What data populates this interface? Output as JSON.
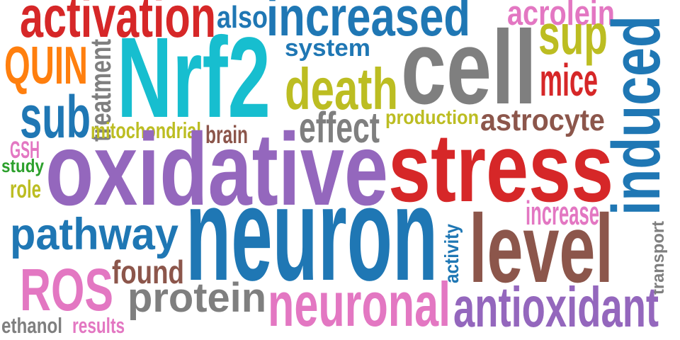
{
  "palette": {
    "red": "#d62728",
    "blue": "#1f77b4",
    "cyan": "#17becf",
    "purple": "#9467bd",
    "brown": "#8c564b",
    "gray": "#7f7f7f",
    "olive": "#bcbd22",
    "pink": "#e377c2",
    "orange": "#ff7f0e",
    "green": "#2ca02c"
  },
  "words": [
    {
      "id": "activation",
      "text": "activation",
      "color": "red"
    },
    {
      "id": "also",
      "text": "also",
      "color": "blue"
    },
    {
      "id": "increased",
      "text": "increased",
      "color": "blue"
    },
    {
      "id": "acrolein",
      "text": "acrolein",
      "color": "pink"
    },
    {
      "id": "quin",
      "text": "QUIN",
      "color": "orange"
    },
    {
      "id": "treatment",
      "text": "treatment",
      "color": "gray"
    },
    {
      "id": "nrf2",
      "text": "Nrf2",
      "color": "cyan"
    },
    {
      "id": "system",
      "text": "system",
      "color": "blue"
    },
    {
      "id": "cell",
      "text": "cell",
      "color": "gray"
    },
    {
      "id": "sup",
      "text": "sup",
      "color": "olive"
    },
    {
      "id": "induced",
      "text": "induced",
      "color": "blue"
    },
    {
      "id": "death",
      "text": "death",
      "color": "olive"
    },
    {
      "id": "mice",
      "text": "mice",
      "color": "red"
    },
    {
      "id": "sub",
      "text": "sub",
      "color": "blue"
    },
    {
      "id": "production",
      "text": "production",
      "color": "olive"
    },
    {
      "id": "effect",
      "text": "effect",
      "color": "gray"
    },
    {
      "id": "astrocyte",
      "text": "astrocyte",
      "color": "brown"
    },
    {
      "id": "mitochondrial",
      "text": "mitochondrial",
      "color": "olive"
    },
    {
      "id": "brain",
      "text": "brain",
      "color": "brown"
    },
    {
      "id": "gsh",
      "text": "GSH",
      "color": "pink"
    },
    {
      "id": "study",
      "text": "study",
      "color": "green"
    },
    {
      "id": "role",
      "text": "role",
      "color": "olive"
    },
    {
      "id": "oxidative",
      "text": "oxidative",
      "color": "purple"
    },
    {
      "id": "stress",
      "text": "stress",
      "color": "red"
    },
    {
      "id": "increase",
      "text": "increase",
      "color": "pink"
    },
    {
      "id": "pathway",
      "text": "pathway",
      "color": "blue"
    },
    {
      "id": "neuron",
      "text": "neuron",
      "color": "blue"
    },
    {
      "id": "activity",
      "text": "activity",
      "color": "blue"
    },
    {
      "id": "level",
      "text": "level",
      "color": "brown"
    },
    {
      "id": "transport",
      "text": "transport",
      "color": "gray"
    },
    {
      "id": "found",
      "text": "found",
      "color": "brown"
    },
    {
      "id": "ros",
      "text": "ROS",
      "color": "pink"
    },
    {
      "id": "protein",
      "text": "protein",
      "color": "gray"
    },
    {
      "id": "neuronal",
      "text": "neuronal",
      "color": "pink"
    },
    {
      "id": "antioxidant",
      "text": "antioxidant",
      "color": "purple"
    },
    {
      "id": "ethanol",
      "text": "ethanol",
      "color": "gray"
    },
    {
      "id": "results",
      "text": "results",
      "color": "pink"
    }
  ]
}
